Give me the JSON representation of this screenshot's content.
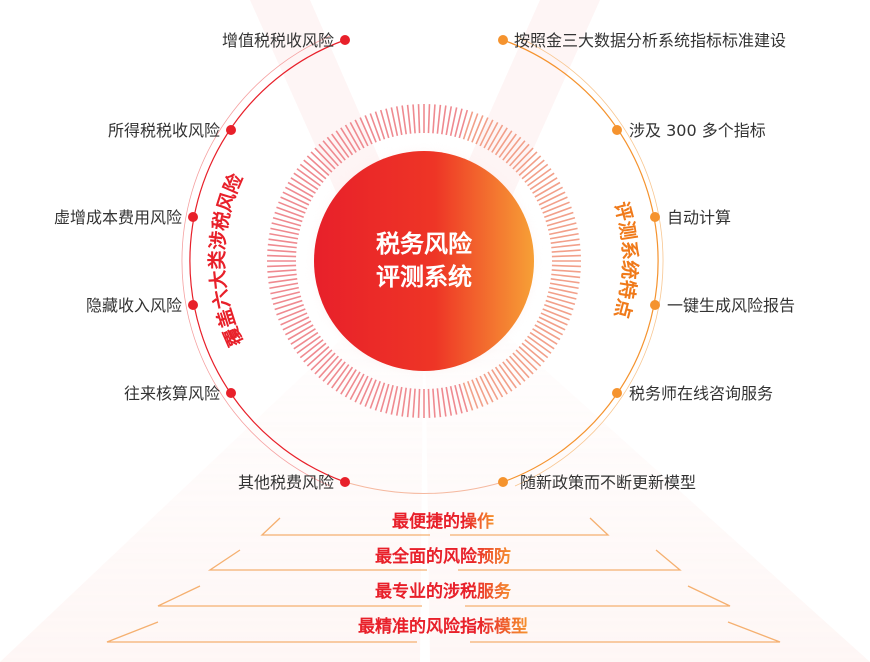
{
  "center": {
    "line1": "税务风险",
    "line2": "评测系统"
  },
  "left_arc_title": "覆盖六大类涉税风险",
  "right_arc_title": "评测系统特点",
  "left_items": [
    "增值税税收风险",
    "所得税税收风险",
    "虚增成本费用风险",
    "隐藏收入风险",
    "往来核算风险",
    "其他税费风险"
  ],
  "right_items": [
    "按照金三大数据分析系统指标标准建设",
    "涉及 300 多个指标",
    "自动计算",
    "一键生成风险报告",
    "税务师在线咨询服务",
    "随新政策而不断更新模型"
  ],
  "pyramid": [
    "最便捷的操作",
    "最全面的风险预防",
    "最专业的涉税服务",
    "最精准的风险指标模型"
  ],
  "colors": {
    "red": "#e8202a",
    "orange": "#f5932e",
    "text": "#333333"
  }
}
